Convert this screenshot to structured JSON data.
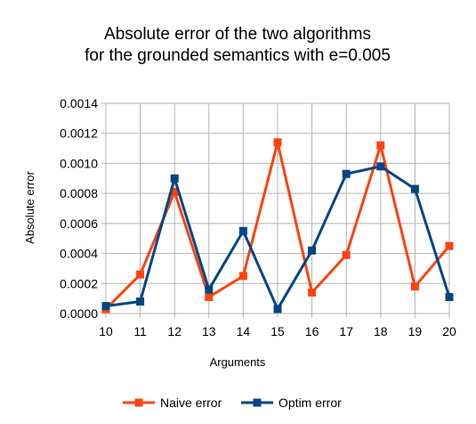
{
  "chart_data": {
    "type": "line",
    "title": "Absolute error of the two algorithms",
    "subtitle": "for the grounded semantics with e=0.005",
    "xlabel": "Arguments",
    "ylabel": "Absolute error",
    "x": [
      10,
      11,
      12,
      13,
      14,
      15,
      16,
      17,
      18,
      19,
      20
    ],
    "xlim": [
      10,
      20
    ],
    "ylim": [
      0,
      0.0014
    ],
    "yticks": [
      "0.0000",
      "0.0002",
      "0.0004",
      "0.0006",
      "0.0008",
      "0.0010",
      "0.0012",
      "0.0014"
    ],
    "ytick_values": [
      0,
      0.0002,
      0.0004,
      0.0006,
      0.0008,
      0.001,
      0.0012,
      0.0014
    ],
    "grid": true,
    "legend_position": "bottom",
    "series": [
      {
        "name": "Naive error",
        "color": "#ff420e",
        "marker": "square",
        "values": [
          3e-05,
          0.00026,
          0.00081,
          0.00011,
          0.00025,
          0.00114,
          0.00014,
          0.00039,
          0.00112,
          0.00018,
          0.00045
        ]
      },
      {
        "name": "Optim error",
        "color": "#004586",
        "marker": "square",
        "values": [
          5e-05,
          8e-05,
          0.0009,
          0.00016,
          0.00055,
          3e-05,
          0.00042,
          0.00093,
          0.00098,
          0.00083,
          0.00011
        ]
      }
    ]
  }
}
